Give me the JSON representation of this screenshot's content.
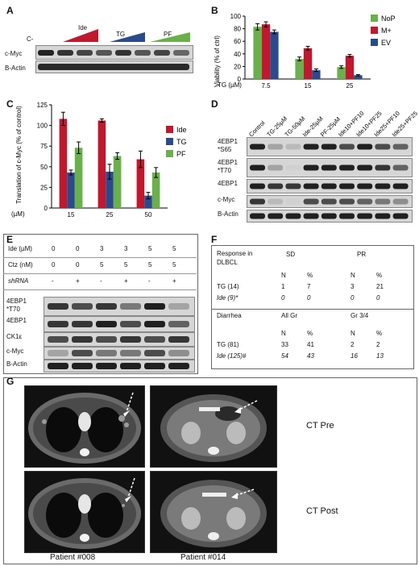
{
  "panels": {
    "A": "A",
    "B": "B",
    "C": "C",
    "D": "D",
    "E": "E",
    "F": "F",
    "G": "G"
  },
  "panelA": {
    "groups": [
      "C-",
      "Ide",
      "TG",
      "PF"
    ],
    "rows": [
      "c-Myc",
      "B-Actin"
    ],
    "ramp_colors": {
      "Ide": "#c0182e",
      "TG": "#2b4a8c",
      "PF": "#6ab04c"
    }
  },
  "panelB": {
    "legend": [
      "NoP",
      "M+",
      "EV"
    ],
    "colors": [
      "#6ab04c",
      "#c0182e",
      "#2b4a8c"
    ],
    "ylabel": "Viability (% of ctrl)",
    "xprefix": "TG (µM)"
  },
  "chartB": {
    "type": "bar",
    "categories": [
      "7.5",
      "15",
      "25"
    ],
    "series": [
      {
        "name": "NoP",
        "values": [
          83,
          32,
          19
        ],
        "err": [
          5,
          3,
          2
        ]
      },
      {
        "name": "M+",
        "values": [
          87,
          49,
          37
        ],
        "err": [
          4,
          3,
          2
        ]
      },
      {
        "name": "EV",
        "values": [
          75,
          14,
          6
        ],
        "err": [
          3,
          2,
          1
        ]
      }
    ],
    "ylim": [
      0,
      100
    ],
    "yticks": [
      0,
      20,
      40,
      60,
      80,
      100
    ]
  },
  "panelC": {
    "legend": [
      "Ide",
      "TG",
      "PF"
    ],
    "colors": [
      "#c0182e",
      "#2b4a8c",
      "#6ab04c"
    ],
    "ylabel": "Translation of c-Myc (% of control)",
    "xprefix": "(µM)"
  },
  "chartC": {
    "type": "bar",
    "categories": [
      "15",
      "25",
      "50"
    ],
    "series": [
      {
        "name": "Ide",
        "values": [
          108,
          106,
          59
        ],
        "err": [
          8,
          2,
          10
        ]
      },
      {
        "name": "TG",
        "values": [
          43,
          44,
          15
        ],
        "err": [
          3,
          9,
          4
        ]
      },
      {
        "name": "PF",
        "values": [
          73,
          63,
          43
        ],
        "err": [
          7,
          4,
          6
        ]
      }
    ],
    "ylim": [
      0,
      125
    ],
    "yticks": [
      0,
      25,
      50,
      75,
      100,
      125
    ]
  },
  "panelD": {
    "columns": [
      "Control",
      "TG-25µM",
      "TG-50µM",
      "Ide-25µM",
      "PF-25µM",
      "Ide10+PF10",
      "Ide10+PF25",
      "Ide25+PF10",
      "Ide25+PF25"
    ],
    "rows": [
      "4EBP1 *S65",
      "4EBP1 *T70",
      "4EBP1",
      "c-Myc",
      "B-Actin"
    ]
  },
  "panelE": {
    "header_rows": [
      {
        "label": "Ide (µM)",
        "values": [
          "0",
          "0",
          "3",
          "3",
          "5",
          "5"
        ]
      },
      {
        "label": "Ctz (nM)",
        "values": [
          "0",
          "0",
          "5",
          "5",
          "5",
          "5"
        ]
      },
      {
        "label": "shRNA",
        "values": [
          "-",
          "+",
          "-",
          "+",
          "-",
          "+"
        ]
      }
    ],
    "blot_rows": [
      "4EBP1 *T70",
      "4EBP1",
      "CK1ε",
      "c-Myc",
      "B-Actin"
    ]
  },
  "panelF": {
    "response_title": "Response in DLBCL",
    "sd": "SD",
    "pr": "PR",
    "subhead": [
      "N",
      "%",
      "N",
      "%"
    ],
    "response_rows": [
      {
        "label": "TG (14)",
        "values": [
          "1",
          "7",
          "3",
          "21"
        ],
        "italic": false
      },
      {
        "label": "Ide (9)*",
        "values": [
          "0",
          "0",
          "0",
          "0"
        ],
        "italic": true
      }
    ],
    "diarrhea_title": "Diarrhea",
    "allgr": "All Gr",
    "gr34": "Gr 3/4",
    "diarrhea_rows": [
      {
        "label": "TG (81)",
        "values": [
          "33",
          "41",
          "2",
          "2"
        ],
        "italic": false
      },
      {
        "label": "Ide (125)#",
        "values": [
          "54",
          "43",
          "16",
          "13"
        ],
        "italic": true
      }
    ]
  },
  "panelG": {
    "ct_pre": "CT Pre",
    "ct_post": "CT Post",
    "patients": [
      "Patient #008",
      "Patient #014"
    ]
  }
}
